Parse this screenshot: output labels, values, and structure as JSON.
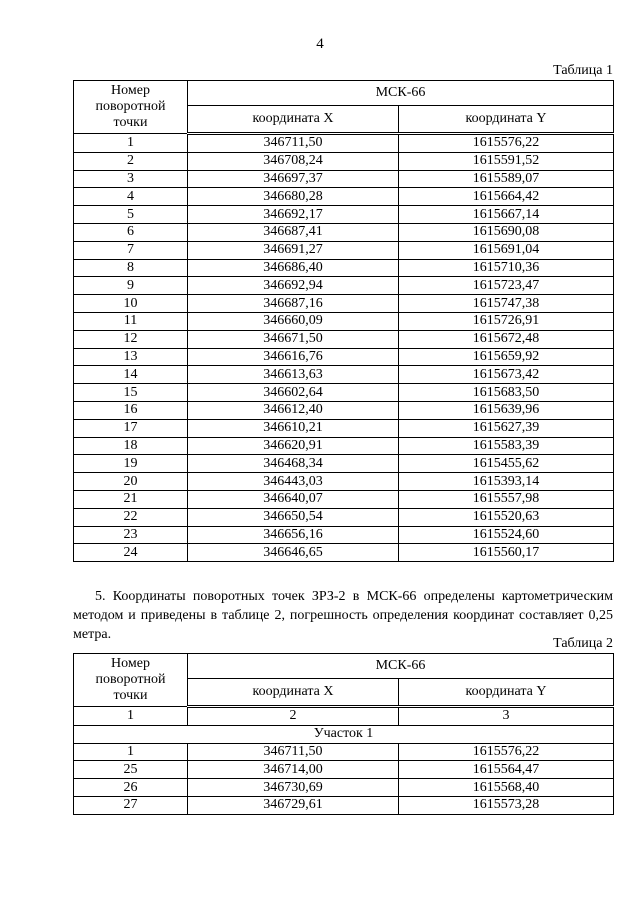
{
  "page_number": "4",
  "table1": {
    "caption": "Таблица 1",
    "header": {
      "point": "Номер поворотной точки",
      "system": "МСК-66",
      "x": "координата X",
      "y": "координата Y"
    },
    "rows": [
      [
        "1",
        "346711,50",
        "1615576,22"
      ],
      [
        "2",
        "346708,24",
        "1615591,52"
      ],
      [
        "3",
        "346697,37",
        "1615589,07"
      ],
      [
        "4",
        "346680,28",
        "1615664,42"
      ],
      [
        "5",
        "346692,17",
        "1615667,14"
      ],
      [
        "6",
        "346687,41",
        "1615690,08"
      ],
      [
        "7",
        "346691,27",
        "1615691,04"
      ],
      [
        "8",
        "346686,40",
        "1615710,36"
      ],
      [
        "9",
        "346692,94",
        "1615723,47"
      ],
      [
        "10",
        "346687,16",
        "1615747,38"
      ],
      [
        "11",
        "346660,09",
        "1615726,91"
      ],
      [
        "12",
        "346671,50",
        "1615672,48"
      ],
      [
        "13",
        "346616,76",
        "1615659,92"
      ],
      [
        "14",
        "346613,63",
        "1615673,42"
      ],
      [
        "15",
        "346602,64",
        "1615683,50"
      ],
      [
        "16",
        "346612,40",
        "1615639,96"
      ],
      [
        "17",
        "346610,21",
        "1615627,39"
      ],
      [
        "18",
        "346620,91",
        "1615583,39"
      ],
      [
        "19",
        "346468,34",
        "1615455,62"
      ],
      [
        "20",
        "346443,03",
        "1615393,14"
      ],
      [
        "21",
        "346640,07",
        "1615557,98"
      ],
      [
        "22",
        "346650,54",
        "1615520,63"
      ],
      [
        "23",
        "346656,16",
        "1615524,60"
      ],
      [
        "24",
        "346646,65",
        "1615560,17"
      ]
    ]
  },
  "paragraph": "5. Координаты поворотных точек ЗРЗ-2 в МСК-66 определены картометрическим методом и приведены в таблице 2, погрешность определения координат составляет 0,25 метра.",
  "table2": {
    "caption": "Таблица 2",
    "header": {
      "point": "Номер поворотной точки",
      "system": "МСК-66",
      "x": "координата X",
      "y": "координата Y"
    },
    "column_numbers": [
      "1",
      "2",
      "3"
    ],
    "section": "Участок 1",
    "rows": [
      [
        "1",
        "346711,50",
        "1615576,22"
      ],
      [
        "25",
        "346714,00",
        "1615564,47"
      ],
      [
        "26",
        "346730,69",
        "1615568,40"
      ],
      [
        "27",
        "346729,61",
        "1615573,28"
      ]
    ]
  }
}
